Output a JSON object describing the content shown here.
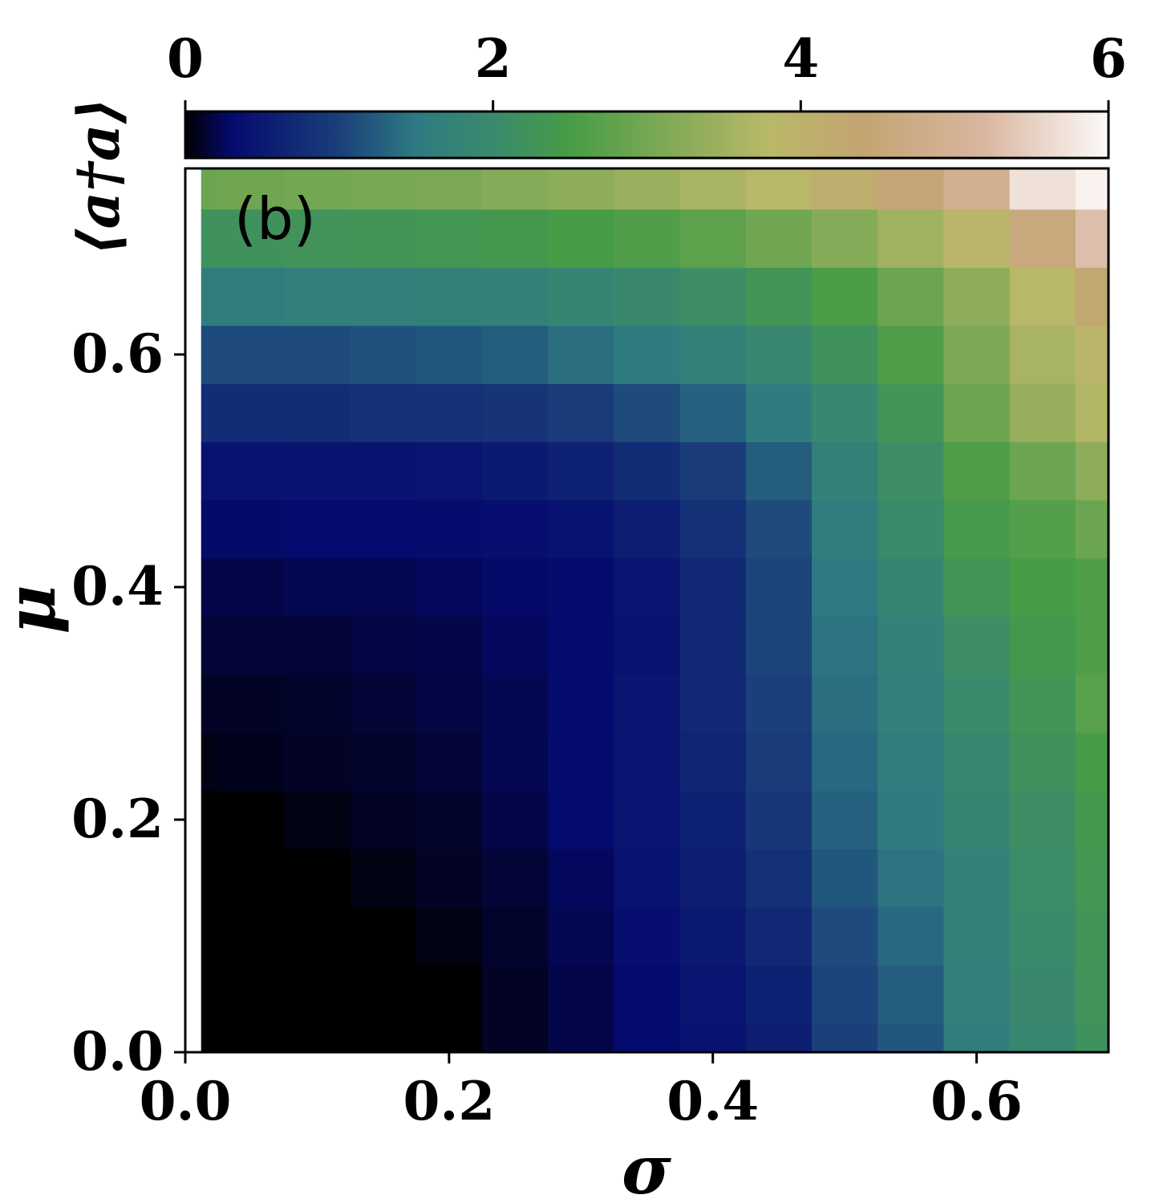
{
  "chart_data": {
    "type": "heatmap",
    "panel_label": "(b)",
    "xlabel": "σ",
    "ylabel": "μ",
    "xlim": [
      0.0,
      0.7
    ],
    "ylim": [
      0.0,
      0.76
    ],
    "xticks": [
      "0.0",
      "0.2",
      "0.4",
      "0.6"
    ],
    "yticks": [
      "0.0",
      "0.2",
      "0.4",
      "0.6"
    ],
    "xtick_values": [
      0.0,
      0.2,
      0.4,
      0.6
    ],
    "ytick_values": [
      0.0,
      0.2,
      0.4,
      0.6
    ],
    "colorbar": {
      "label": "⟨a†a⟩",
      "range": [
        0,
        6
      ],
      "ticks": [
        "0",
        "2",
        "4",
        "6"
      ],
      "tick_values": [
        0,
        2,
        4,
        6
      ],
      "colormap": "gist_earth",
      "stops": [
        {
          "v": 0.0,
          "color": "#000000"
        },
        {
          "v": 0.3,
          "color": "#050a6e"
        },
        {
          "v": 1.0,
          "color": "#1a3f7a"
        },
        {
          "v": 1.5,
          "color": "#2e7a82"
        },
        {
          "v": 2.0,
          "color": "#3a8a6c"
        },
        {
          "v": 2.5,
          "color": "#479c47"
        },
        {
          "v": 3.2,
          "color": "#86ab58"
        },
        {
          "v": 3.8,
          "color": "#b9b868"
        },
        {
          "v": 4.4,
          "color": "#c3a472"
        },
        {
          "v": 5.2,
          "color": "#d9b6a0"
        },
        {
          "v": 6.0,
          "color": "#fdfafa"
        }
      ]
    },
    "grid_sigma": [
      0.0,
      0.05,
      0.1,
      0.15,
      0.2,
      0.25,
      0.3,
      0.35,
      0.4,
      0.45,
      0.5,
      0.55,
      0.6,
      0.65,
      0.7
    ],
    "grid_mu": [
      0.0,
      0.05,
      0.1,
      0.15,
      0.2,
      0.25,
      0.3,
      0.35,
      0.4,
      0.45,
      0.5,
      0.55,
      0.6,
      0.65,
      0.7,
      0.75
    ],
    "values": [
      [
        0.0,
        0.0,
        0.0,
        0.0,
        0.0,
        0.1,
        0.2,
        0.3,
        0.4,
        0.55,
        1.0,
        1.2,
        1.6,
        1.9,
        2.2
      ],
      [
        0.0,
        0.0,
        0.0,
        0.0,
        0.0,
        0.1,
        0.2,
        0.3,
        0.45,
        0.6,
        1.05,
        1.25,
        1.65,
        1.95,
        2.25
      ],
      [
        0.0,
        0.0,
        0.0,
        0.0,
        0.05,
        0.12,
        0.22,
        0.35,
        0.5,
        0.7,
        1.1,
        1.35,
        1.7,
        2.0,
        2.3
      ],
      [
        0.0,
        0.0,
        0.0,
        0.05,
        0.1,
        0.15,
        0.25,
        0.4,
        0.55,
        0.8,
        1.2,
        1.45,
        1.75,
        2.05,
        2.35
      ],
      [
        0.0,
        0.0,
        0.05,
        0.1,
        0.12,
        0.2,
        0.3,
        0.45,
        0.6,
        0.9,
        1.3,
        1.55,
        1.85,
        2.1,
        2.4
      ],
      [
        0.05,
        0.08,
        0.1,
        0.12,
        0.15,
        0.22,
        0.32,
        0.45,
        0.65,
        0.95,
        1.35,
        1.6,
        1.9,
        2.2,
        2.5
      ],
      [
        0.1,
        0.1,
        0.12,
        0.15,
        0.18,
        0.22,
        0.3,
        0.45,
        0.7,
        1.0,
        1.4,
        1.65,
        2.0,
        2.3,
        2.7
      ],
      [
        0.15,
        0.15,
        0.15,
        0.18,
        0.2,
        0.25,
        0.3,
        0.4,
        0.7,
        1.05,
        1.45,
        1.75,
        2.1,
        2.4,
        2.6
      ],
      [
        0.2,
        0.2,
        0.22,
        0.22,
        0.25,
        0.28,
        0.32,
        0.45,
        0.7,
        1.05,
        1.5,
        1.85,
        2.3,
        2.5,
        2.6
      ],
      [
        0.28,
        0.28,
        0.3,
        0.3,
        0.32,
        0.35,
        0.4,
        0.55,
        0.8,
        1.1,
        1.6,
        2.0,
        2.45,
        2.65,
        2.9
      ],
      [
        0.4,
        0.4,
        0.42,
        0.42,
        0.45,
        0.5,
        0.6,
        0.75,
        0.95,
        1.25,
        1.7,
        2.1,
        2.6,
        2.9,
        3.3
      ],
      [
        0.75,
        0.75,
        0.75,
        0.8,
        0.82,
        0.85,
        0.95,
        1.1,
        1.3,
        1.55,
        1.9,
        2.3,
        2.9,
        3.4,
        3.7
      ],
      [
        1.1,
        1.1,
        1.1,
        1.15,
        1.2,
        1.25,
        1.4,
        1.55,
        1.7,
        1.9,
        2.2,
        2.6,
        3.1,
        3.6,
        3.9
      ],
      [
        1.6,
        1.6,
        1.65,
        1.65,
        1.7,
        1.75,
        1.85,
        1.95,
        2.1,
        2.3,
        2.55,
        2.9,
        3.3,
        3.8,
        4.3
      ],
      [
        2.2,
        2.2,
        2.25,
        2.3,
        2.35,
        2.4,
        2.5,
        2.6,
        2.75,
        2.95,
        3.2,
        3.5,
        3.9,
        4.6,
        5.3
      ],
      [
        2.9,
        2.95,
        3.0,
        3.05,
        3.1,
        3.2,
        3.3,
        3.45,
        3.6,
        3.8,
        4.1,
        4.5,
        4.9,
        5.7,
        5.9
      ]
    ]
  }
}
